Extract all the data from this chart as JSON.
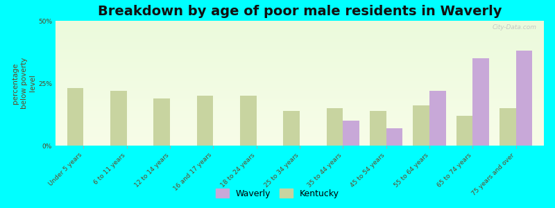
{
  "title": "Breakdown by age of poor male residents in Waverly",
  "ylabel": "percentage\nbelow poverty\nlevel",
  "categories": [
    "Under 5 years",
    "6 to 11 years",
    "12 to 14 years",
    "16 and 17 years",
    "18 to 24 years",
    "25 to 34 years",
    "35 to 44 years",
    "45 to 54 years",
    "55 to 64 years",
    "65 to 74 years",
    "75 years and over"
  ],
  "waverly": [
    0,
    0,
    0,
    0,
    0,
    0,
    10,
    7,
    22,
    35,
    38
  ],
  "kentucky": [
    23,
    22,
    19,
    20,
    20,
    14,
    15,
    14,
    16,
    12,
    15
  ],
  "waverly_color": "#c8a8d8",
  "kentucky_color": "#c8d4a0",
  "bg_outer": "#00ffff",
  "ylim": [
    0,
    50
  ],
  "yticks": [
    0,
    25,
    50
  ],
  "ytick_labels": [
    "0%",
    "25%",
    "50%"
  ],
  "title_fontsize": 14,
  "axis_label_fontsize": 7.5,
  "tick_fontsize": 6.5,
  "legend_fontsize": 9,
  "bar_width": 0.38,
  "watermark": "City-Data.com"
}
